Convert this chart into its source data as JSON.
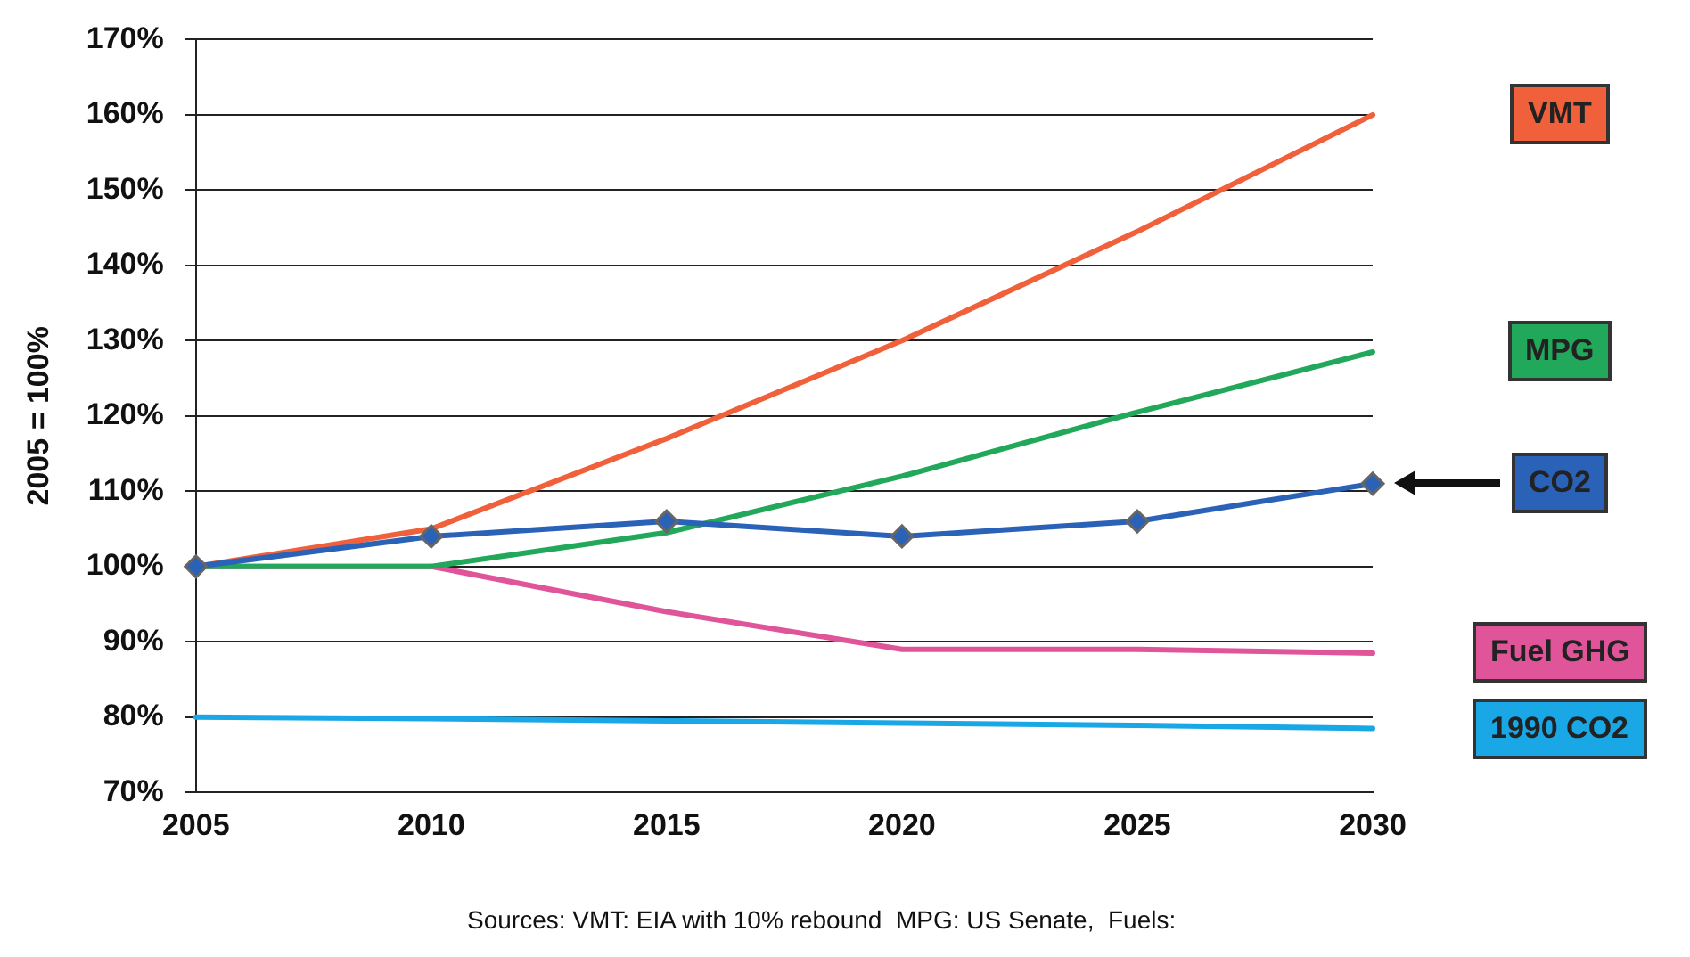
{
  "chart_data": {
    "type": "line",
    "ylabel": "2005 = 100%",
    "categories": [
      "2005",
      "2010",
      "2015",
      "2020",
      "2025",
      "2030"
    ],
    "ylim": [
      70,
      170
    ],
    "yticks": [
      {
        "value": 70,
        "label": "70%"
      },
      {
        "value": 80,
        "label": "80%"
      },
      {
        "value": 90,
        "label": "90%"
      },
      {
        "value": 100,
        "label": "100%"
      },
      {
        "value": 110,
        "label": "110%"
      },
      {
        "value": 120,
        "label": "120%"
      },
      {
        "value": 130,
        "label": "130%"
      },
      {
        "value": 140,
        "label": "140%"
      },
      {
        "value": 150,
        "label": "150%"
      },
      {
        "value": 160,
        "label": "160%"
      },
      {
        "value": 170,
        "label": "170%"
      }
    ],
    "grid": "y",
    "legend": "right",
    "marker": "none",
    "line_style": "solid",
    "series": [
      {
        "name": "VMT",
        "color": "#f0603a",
        "values": [
          100,
          105,
          117,
          130,
          144.5,
          160
        ]
      },
      {
        "name": "MPG",
        "color": "#22a85a",
        "values": [
          100,
          100,
          104.5,
          112,
          120.5,
          128.5
        ]
      },
      {
        "name": "CO2",
        "color": "#2a62b8",
        "values": [
          100,
          104,
          106,
          104,
          106,
          111
        ],
        "marker": "diamond"
      },
      {
        "name": "Fuel GHG",
        "color": "#e0559a",
        "values": [
          100,
          100,
          94,
          89,
          89,
          88.5
        ]
      },
      {
        "name": "1990 CO2",
        "color": "#1aa7e6",
        "values": [
          80,
          79.8,
          79.5,
          79.2,
          78.9,
          78.5
        ]
      }
    ],
    "annotations": [
      "Sources: VMT: EIA with 10% rebound  MPG: US Senate,  Fuels:"
    ]
  }
}
